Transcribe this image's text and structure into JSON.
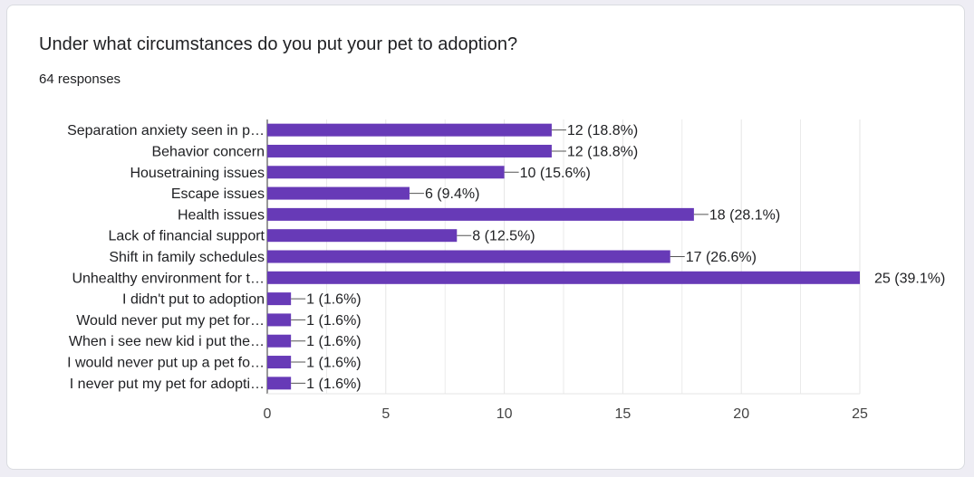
{
  "question": {
    "title": "Under what circumstances do you put your pet to adoption?",
    "responses": "64 responses"
  },
  "colors": {
    "bar": "#673ab7",
    "grid": "#e5e5e5",
    "axis": "#333333"
  },
  "chart_data": {
    "type": "bar",
    "orientation": "horizontal",
    "categories": [
      "Separation anxiety seen in p…",
      "Behavior concern",
      "Housetraining issues",
      "Escape issues",
      "Health issues",
      "Lack of financial support",
      "Shift in family schedules",
      "Unhealthy environment for t…",
      "I didn't put to adoption",
      "Would never put my pet for…",
      "When i see new kid i put the…",
      "I would never put up a pet fo…",
      "I never put my pet for adopti…"
    ],
    "values": [
      12,
      12,
      10,
      6,
      18,
      8,
      17,
      25,
      1,
      1,
      1,
      1,
      1
    ],
    "value_labels": [
      "12 (18.8%)",
      "12 (18.8%)",
      "10 (15.6%)",
      "6 (9.4%)",
      "18 (28.1%)",
      "8 (12.5%)",
      "17 (26.6%)",
      "25 (39.1%)",
      "1 (1.6%)",
      "1 (1.6%)",
      "1 (1.6%)",
      "1 (1.6%)",
      "1 (1.6%)"
    ],
    "xlim": [
      0,
      25
    ],
    "xticks": [
      0,
      5,
      10,
      15,
      20,
      25
    ],
    "grid": true,
    "legend": "none"
  }
}
